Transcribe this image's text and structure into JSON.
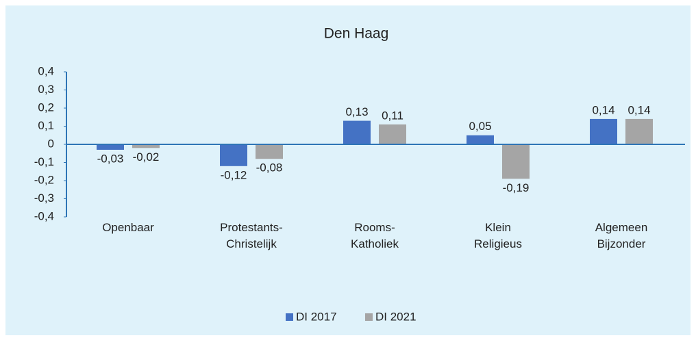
{
  "chart_data": {
    "type": "bar",
    "title": "Den Haag",
    "categories": [
      "Openbaar",
      "Protestants-\nChristelijk",
      "Rooms-\nKatholiek",
      "Klein\nReligieus",
      "Algemeen\nBijzonder"
    ],
    "series": [
      {
        "name": "DI 2017",
        "color": "#4472c4",
        "values": [
          -0.03,
          -0.12,
          0.13,
          0.05,
          0.14
        ],
        "value_labels": [
          "-0,03",
          "-0,12",
          "0,13",
          "0,05",
          "0,14"
        ]
      },
      {
        "name": "DI 2021",
        "color": "#a5a5a5",
        "values": [
          -0.02,
          -0.08,
          0.11,
          -0.19,
          0.14
        ],
        "value_labels": [
          "-0,02",
          "-0,08",
          "0,11",
          "-0,19",
          "0,14"
        ]
      }
    ],
    "ylim": [
      -0.4,
      0.4
    ],
    "yticks": [
      {
        "value": -0.4,
        "label": "-0,4"
      },
      {
        "value": -0.3,
        "label": "-0,3"
      },
      {
        "value": -0.2,
        "label": "-0,2"
      },
      {
        "value": -0.1,
        "label": "-0,1"
      },
      0,
      {
        "value": 0.1,
        "label": "0,1"
      },
      {
        "value": 0.2,
        "label": "0,2"
      },
      {
        "value": 0.3,
        "label": "0,3"
      },
      {
        "value": 0.4,
        "label": "0,4"
      }
    ],
    "legend": "bottom",
    "grid": false
  }
}
